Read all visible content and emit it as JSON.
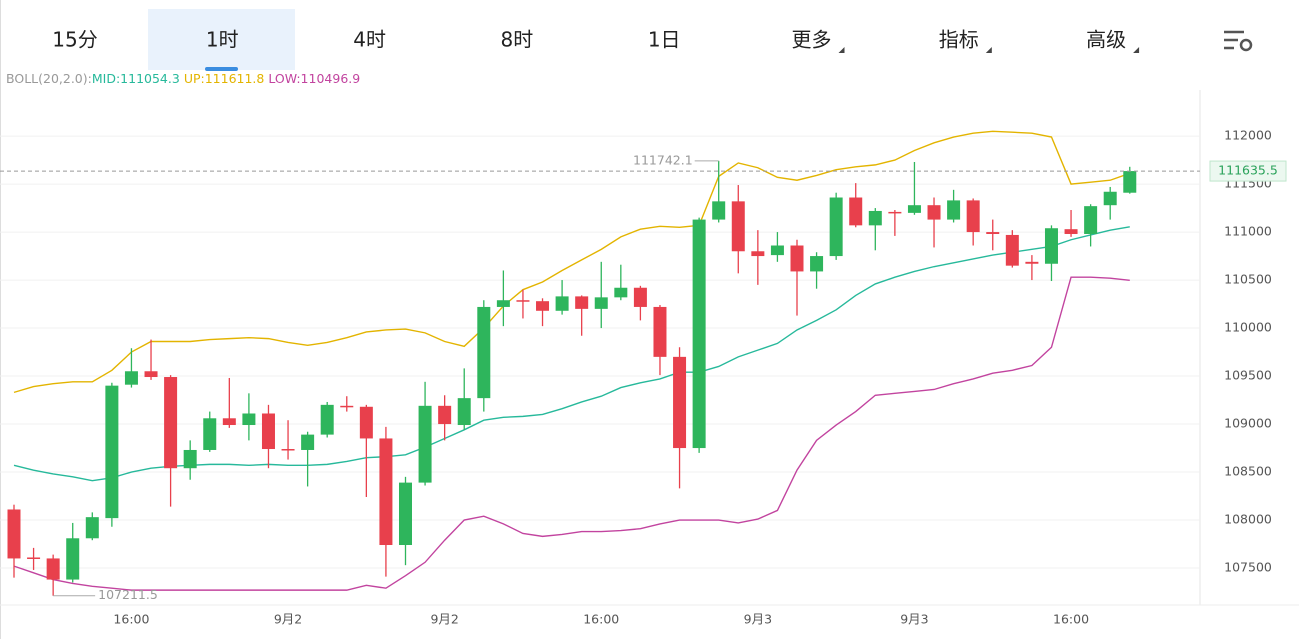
{
  "tabs": [
    "15分",
    "1时",
    "4时",
    "8时",
    "1日",
    "更多",
    "指标",
    "高级"
  ],
  "selected_tab": 1,
  "chart_data": {
    "type": "candlestick",
    "indicator": "BOLL(20,2.0):",
    "categories": [
      null,
      null,
      null,
      null,
      null,
      null,
      "16:00",
      null,
      null,
      null,
      null,
      null,
      null,
      null,
      "9月2",
      null,
      null,
      null,
      null,
      null,
      null,
      null,
      "9月2",
      null,
      null,
      null,
      null,
      null,
      null,
      null,
      "16:00",
      null,
      null,
      null,
      null,
      null,
      null,
      null,
      "9月3",
      null,
      null,
      null,
      null,
      null,
      null,
      null,
      "9月3",
      null,
      null,
      null,
      null,
      null,
      null,
      null,
      "16:00",
      null,
      null,
      null
    ],
    "open": [
      108110,
      107610,
      107600,
      107380,
      107810,
      108020,
      109410,
      109550,
      109490,
      108540,
      108730,
      109060,
      108990,
      109110,
      108740,
      108730,
      108890,
      109190,
      109180,
      108850,
      107740,
      108390,
      109190,
      108990,
      109270,
      110220,
      110290,
      110280,
      110180,
      110330,
      110200,
      110320,
      110420,
      110220,
      109700,
      108750,
      111130,
      111320,
      110800,
      110760,
      110860,
      110590,
      110750,
      111360,
      111070,
      111210,
      111200,
      111280,
      111130,
      111330,
      111000,
      110970,
      110690,
      110670,
      111030,
      110980,
      111280,
      111410
    ],
    "high": [
      108160,
      107710,
      107640,
      107970,
      108080,
      109430,
      109790,
      109880,
      109510,
      108830,
      109130,
      109480,
      109320,
      109200,
      109040,
      108920,
      109230,
      109290,
      109200,
      108970,
      108450,
      109440,
      109300,
      109580,
      110290,
      110600,
      110400,
      110310,
      110500,
      110340,
      110690,
      110660,
      110440,
      110240,
      109800,
      111150,
      111742.1,
      111490,
      111020,
      111000,
      110920,
      110790,
      111410,
      111510,
      111250,
      111230,
      111730,
      111360,
      111440,
      111350,
      111130,
      111020,
      110760,
      111070,
      111230,
      111290,
      111470,
      111680
    ],
    "low": [
      107400,
      107480,
      107211.5,
      107350,
      107790,
      107930,
      109380,
      109460,
      108140,
      108420,
      108710,
      108960,
      108830,
      108540,
      108630,
      108350,
      108860,
      109130,
      108240,
      107410,
      107530,
      108360,
      108830,
      108940,
      109130,
      110020,
      110100,
      110020,
      110140,
      109920,
      110000,
      110290,
      110080,
      109510,
      108330,
      108700,
      111100,
      110570,
      110450,
      110690,
      110130,
      110410,
      110710,
      111050,
      110810,
      110960,
      111180,
      110840,
      111100,
      110860,
      110810,
      110630,
      110500,
      110490,
      110950,
      110850,
      111130,
      111400
    ],
    "close": [
      107600,
      107600,
      107380,
      107810,
      108030,
      109400,
      109550,
      109490,
      108540,
      108730,
      109060,
      108990,
      109110,
      108740,
      108730,
      108890,
      109200,
      109180,
      108850,
      107740,
      108390,
      109190,
      109000,
      109270,
      110220,
      110290,
      110280,
      110180,
      110330,
      110200,
      110320,
      110420,
      110220,
      109700,
      108750,
      111130,
      111320,
      110800,
      110750,
      110860,
      110590,
      110750,
      111360,
      111070,
      111220,
      111200,
      111280,
      111130,
      111330,
      111000,
      110980,
      110650,
      110670,
      111040,
      110980,
      111270,
      111420,
      111635.5
    ],
    "up_color": "#2eb55c",
    "down_color": "#e8404c",
    "series": [
      {
        "name": "MID",
        "legend_label": "MID:111054.3",
        "color": "#27b99b",
        "values": [
          108570,
          108520,
          108480,
          108450,
          108410,
          108440,
          108500,
          108540,
          108560,
          108570,
          108580,
          108580,
          108570,
          108580,
          108570,
          108570,
          108580,
          108610,
          108650,
          108660,
          108680,
          108760,
          108850,
          108940,
          109040,
          109070,
          109080,
          109100,
          109160,
          109230,
          109290,
          109380,
          109430,
          109470,
          109540,
          109540,
          109600,
          109700,
          109770,
          109840,
          109980,
          110080,
          110190,
          110340,
          110460,
          110530,
          110590,
          110640,
          110680,
          110720,
          110760,
          110790,
          110820,
          110850,
          110920,
          110970,
          111020,
          111054.3
        ]
      },
      {
        "name": "UP",
        "legend_label": "UP:111611.8",
        "color": "#e3b400",
        "values": [
          109330,
          109390,
          109420,
          109440,
          109440,
          109560,
          109750,
          109860,
          109860,
          109860,
          109880,
          109890,
          109900,
          109890,
          109850,
          109820,
          109850,
          109900,
          109960,
          109980,
          109990,
          109950,
          109860,
          109810,
          110000,
          110230,
          110400,
          110480,
          110600,
          110710,
          110820,
          110950,
          111030,
          111060,
          111050,
          111070,
          111580,
          111720,
          111670,
          111570,
          111540,
          111590,
          111650,
          111680,
          111700,
          111750,
          111850,
          111930,
          111990,
          112030,
          112050,
          112040,
          112030,
          111990,
          111500,
          111520,
          111540,
          111611.8
        ]
      },
      {
        "name": "LOW",
        "legend_label": "LOW:110496.9",
        "color": "#c2449f",
        "values": [
          107520,
          107450,
          107380,
          107340,
          107310,
          107290,
          107270,
          107270,
          107270,
          107270,
          107270,
          107270,
          107270,
          107270,
          107270,
          107270,
          107270,
          107270,
          107320,
          107290,
          107420,
          107560,
          107790,
          108000,
          108040,
          107960,
          107860,
          107830,
          107850,
          107880,
          107880,
          107890,
          107910,
          107960,
          108000,
          108000,
          108000,
          107970,
          108010,
          108100,
          108520,
          108830,
          108990,
          109130,
          109300,
          109320,
          109340,
          109360,
          109420,
          109470,
          109530,
          109560,
          109610,
          109800,
          110530,
          110530,
          110520,
          110496.9
        ]
      }
    ],
    "ylim": [
      107115,
      112480
    ],
    "yticks": [
      107500,
      108000,
      108500,
      109000,
      109500,
      110000,
      110500,
      111000,
      111500,
      112000
    ],
    "grid": true,
    "last_price": 111635.5,
    "high_marker": 111742.1,
    "low_marker": 107211.5
  }
}
